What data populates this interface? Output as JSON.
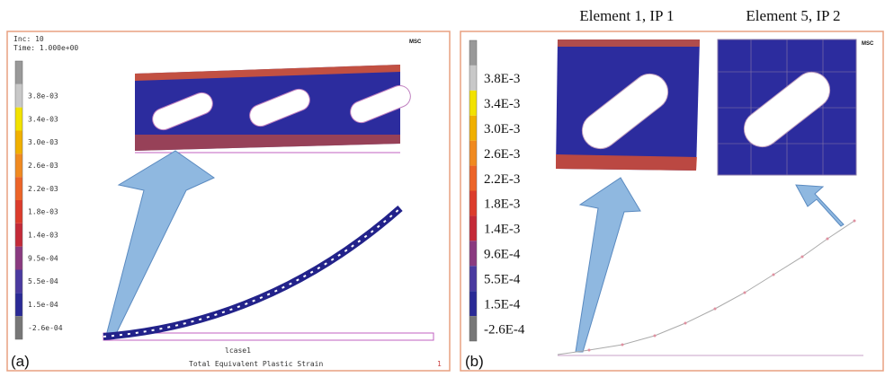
{
  "panel_a": {
    "tag": "(a)",
    "logo": "MSC",
    "inc": "Inc:  10",
    "time": "Time:  1.000e+00",
    "legend": [
      "3.8e-03",
      "3.4e-03",
      "3.0e-03",
      "2.6e-03",
      "2.2e-03",
      "1.8e-03",
      "1.4e-03",
      "9.5e-04",
      "5.5e-04",
      "1.5e-04",
      "-2.6e-04"
    ],
    "case": "lcase1",
    "caption": "Total Equivalent Plastic Strain",
    "page": "1"
  },
  "panel_b": {
    "tag": "(b)",
    "logo": "MSC",
    "titles": [
      "Element 1, IP 1",
      "Element 5, IP 2"
    ],
    "legend": [
      "3.8E-3",
      "3.4E-3",
      "3.0E-3",
      "2.6E-3",
      "2.2E-3",
      "1.8E-3",
      "1.4E-3",
      "9.6E-4",
      "5.5E-4",
      "1.5E-4",
      "-2.6E-4"
    ]
  }
}
